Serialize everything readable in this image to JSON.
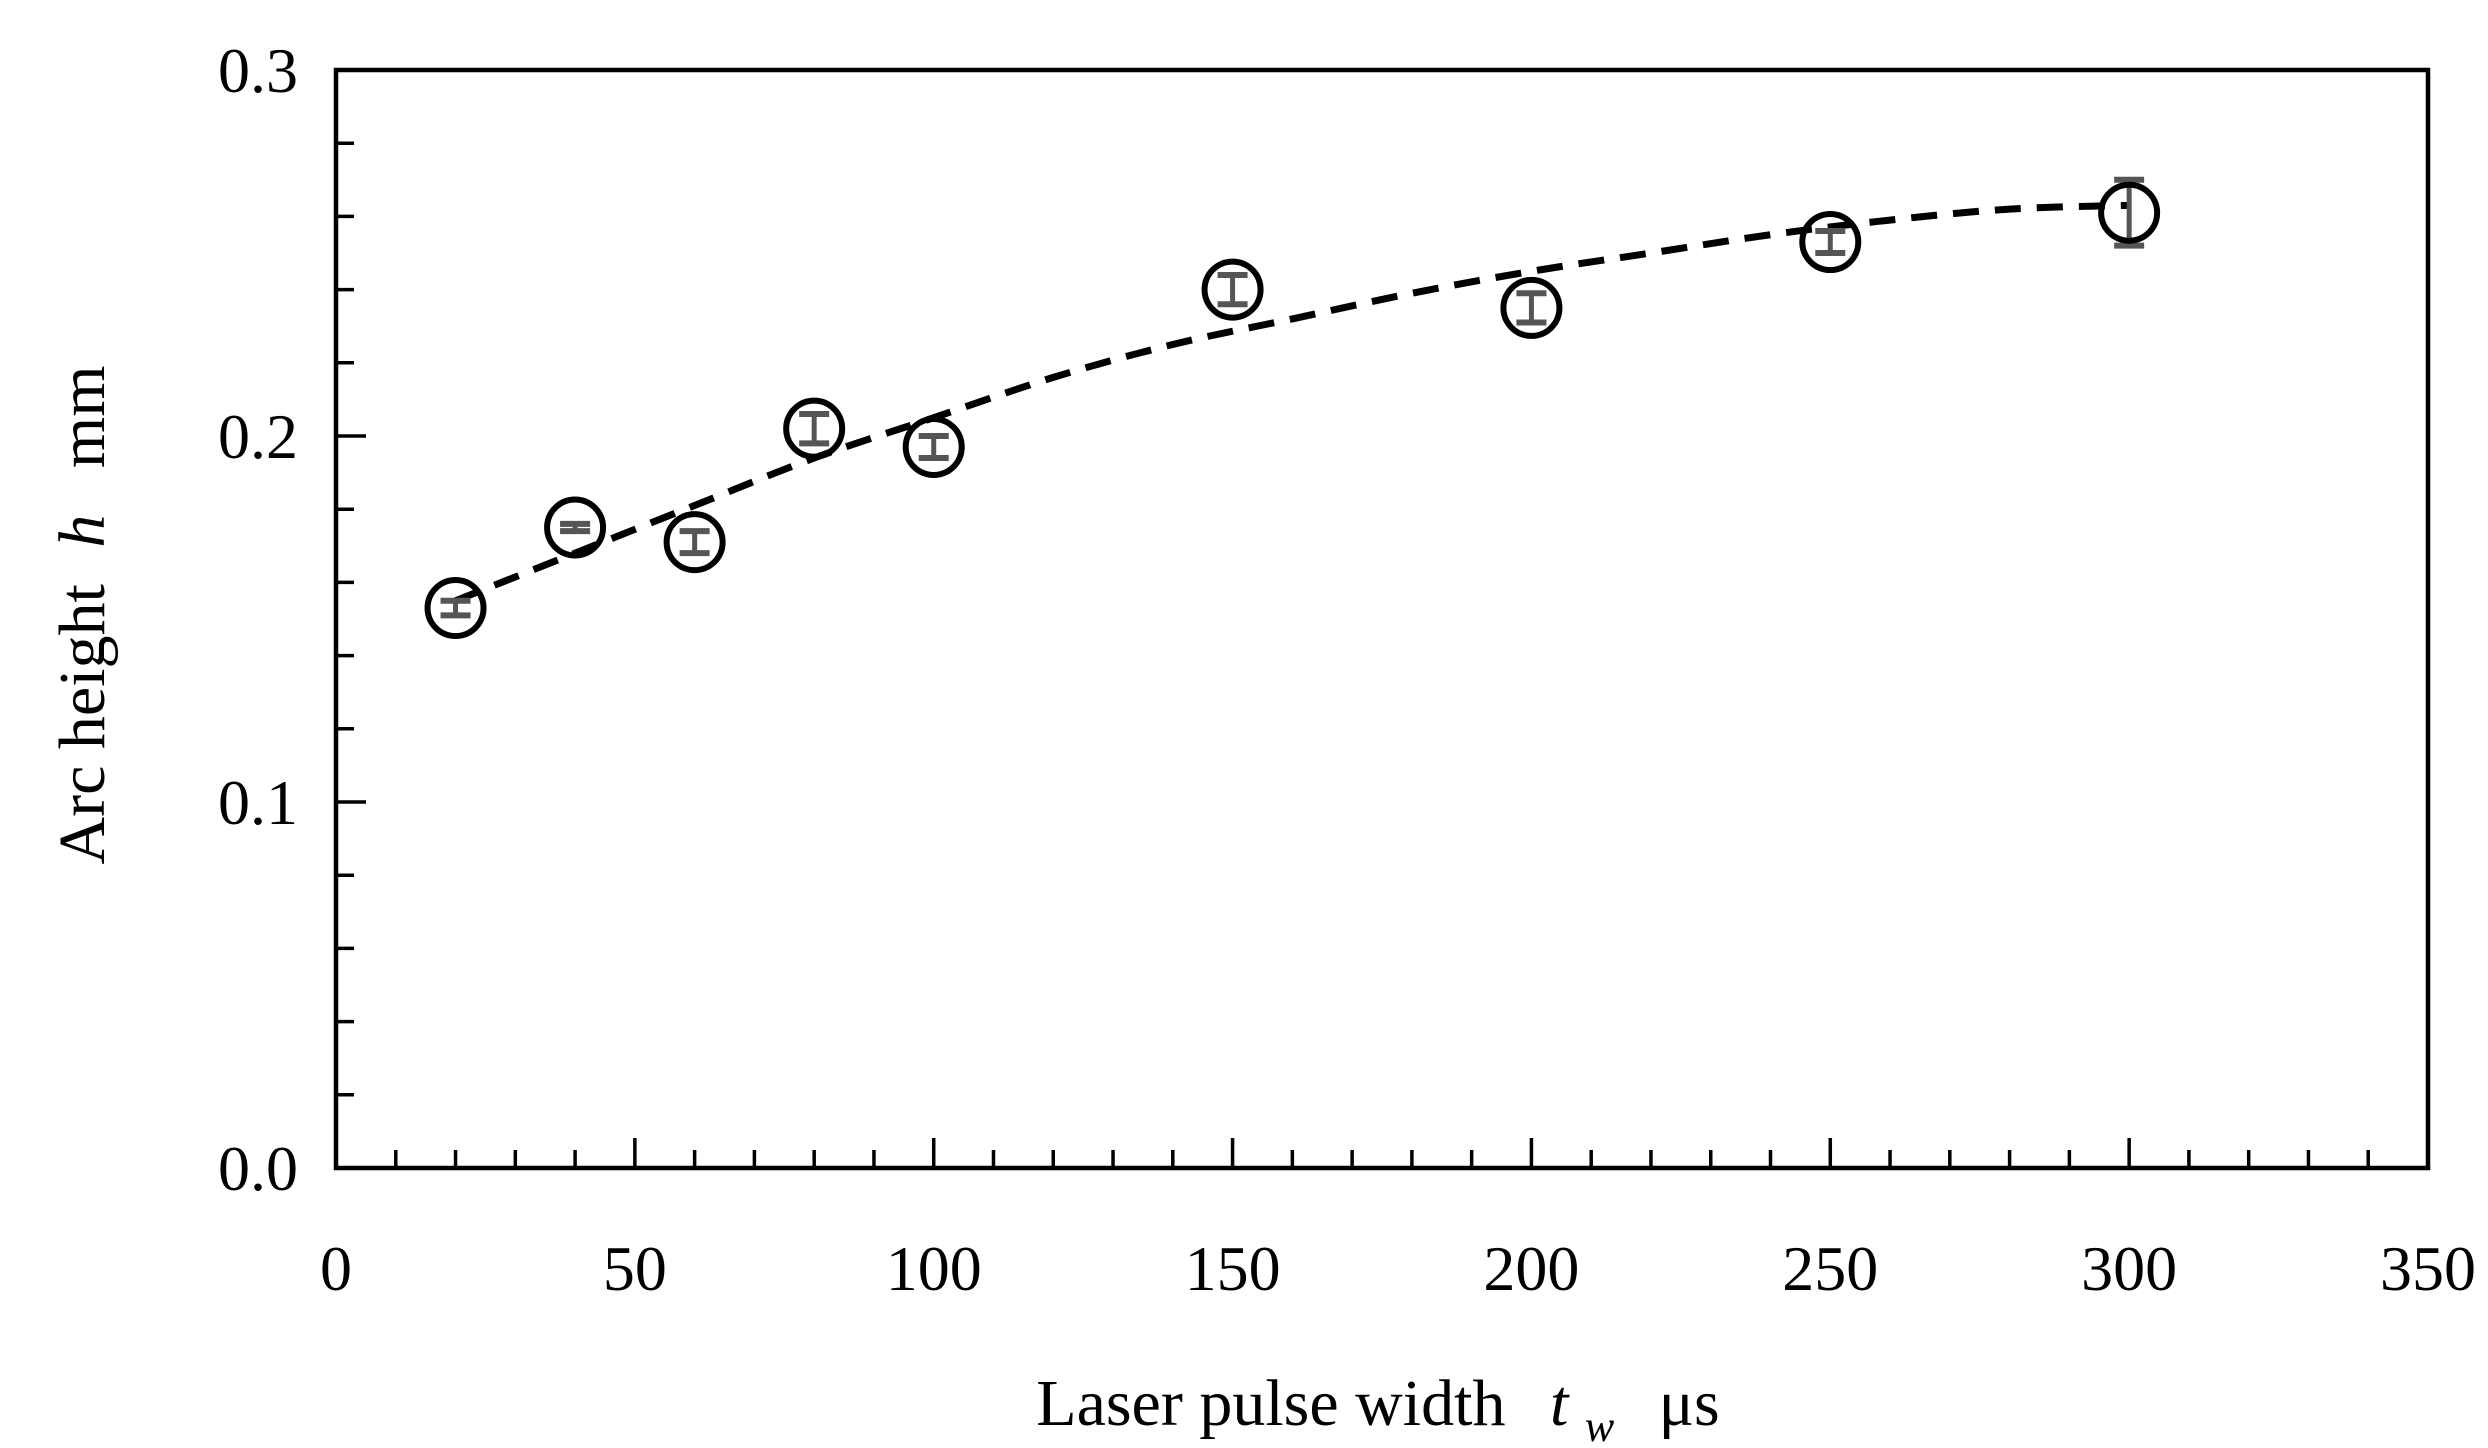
{
  "chart_data": {
    "type": "scatter",
    "xlabel": {
      "main": "Laser pulse width",
      "symbol": "t",
      "subscript": "w",
      "unit": "μs"
    },
    "ylabel": {
      "main": "Arc height",
      "symbol": "h",
      "unit": "mm"
    },
    "xlim": [
      0,
      350
    ],
    "ylim": [
      0.0,
      0.3
    ],
    "x_ticks": [
      0,
      50,
      100,
      150,
      200,
      250,
      300,
      350
    ],
    "x_tick_labels": [
      "0",
      "50",
      "100",
      "150",
      "200",
      "250",
      "300",
      "350"
    ],
    "x_minor_step": 10,
    "y_ticks": [
      0.0,
      0.1,
      0.2,
      0.3
    ],
    "y_tick_labels": [
      "0.0",
      "0.1",
      "0.2",
      "0.3"
    ],
    "y_minor_step": 0.02,
    "grid": false,
    "series": [
      {
        "marker": "open-circle",
        "x": [
          20,
          40,
          60,
          80,
          100,
          150,
          200,
          250,
          300
        ],
        "y": [
          0.153,
          0.175,
          0.171,
          0.202,
          0.197,
          0.24,
          0.235,
          0.253,
          0.261
        ],
        "error": [
          0.002,
          0.001,
          0.003,
          0.004,
          0.003,
          0.004,
          0.004,
          0.003,
          0.009
        ]
      }
    ],
    "fit": {
      "style": "dashed",
      "x": [
        20,
        40,
        60,
        80,
        100,
        120,
        140,
        160,
        180,
        200,
        220,
        240,
        260,
        280,
        300
      ],
      "y": [
        0.155,
        0.168,
        0.181,
        0.194,
        0.205,
        0.216,
        0.225,
        0.232,
        0.239,
        0.245,
        0.25,
        0.255,
        0.259,
        0.262,
        0.263
      ]
    },
    "colors": {
      "marker": "#000000",
      "error_bar": "#555555",
      "fit": "#000000",
      "axis": "#000000"
    }
  }
}
